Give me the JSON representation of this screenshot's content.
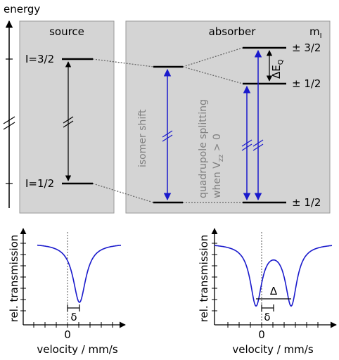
{
  "energy_axis": {
    "label": "energy"
  },
  "source_panel": {
    "title": "source",
    "levels": {
      "upper": "I=3/2",
      "lower": "I=1/2"
    }
  },
  "absorber_panel": {
    "title": "absorber",
    "ml_label": "m",
    "ml_sub": "I",
    "levels": {
      "top": "± 3/2",
      "middle": "± 1/2",
      "bottom": "± 1/2"
    },
    "delta_eq": "ΔE",
    "delta_eq_sub": "Q",
    "isomer_shift": "isomer  shift",
    "quadrupole_line1": "quadrupole splitting",
    "quadrupole_line2_a": "when V",
    "quadrupole_line2_sub": "zz",
    "quadrupole_line2_b": " > 0"
  },
  "spectrum_left": {
    "ylabel": "rel. transmission",
    "xlabel": "velocity / mm/s",
    "zero_label": "0",
    "delta_label": "δ"
  },
  "spectrum_right": {
    "ylabel": "rel. transmission",
    "xlabel": "velocity / mm/s",
    "zero_label": "0",
    "delta_label": "δ",
    "splitting_label": "Δ"
  },
  "colors": {
    "panel_fill": "#d4d4d4",
    "blue": "#1a1acc",
    "gray_text": "#808080"
  }
}
